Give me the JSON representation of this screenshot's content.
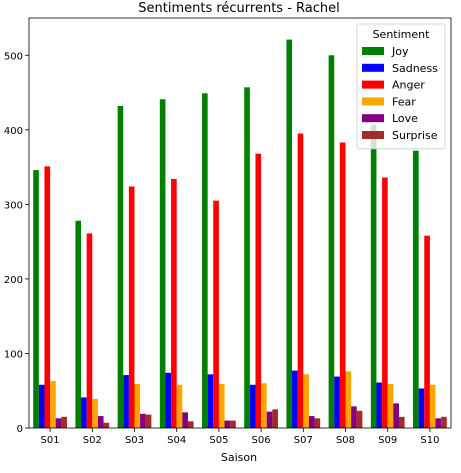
{
  "chart_data": {
    "type": "bar",
    "title": "Sentiments récurrents - Rachel",
    "xlabel": "Saison",
    "ylabel": "",
    "categories": [
      "S01",
      "S02",
      "S03",
      "S04",
      "S05",
      "S06",
      "S07",
      "S08",
      "S09",
      "S10"
    ],
    "ylim": [
      0,
      550
    ],
    "yticks": [
      0,
      100,
      200,
      300,
      400,
      500
    ],
    "grid": false,
    "legend": {
      "title": "Sentiment",
      "placement": "top-right"
    },
    "series": [
      {
        "name": "Joy",
        "color": "#008000",
        "values": [
          346,
          278,
          432,
          441,
          449,
          457,
          521,
          500,
          407,
          372
        ]
      },
      {
        "name": "Sadness",
        "color": "#0000ff",
        "values": [
          58,
          41,
          71,
          74,
          72,
          58,
          77,
          69,
          61,
          53
        ]
      },
      {
        "name": "Anger",
        "color": "#ff0000",
        "values": [
          351,
          261,
          324,
          334,
          305,
          368,
          395,
          383,
          336,
          258
        ]
      },
      {
        "name": "Fear",
        "color": "#ffa500",
        "values": [
          63,
          39,
          59,
          58,
          59,
          60,
          72,
          76,
          59,
          58
        ]
      },
      {
        "name": "Love",
        "color": "#800080",
        "values": [
          13,
          16,
          19,
          21,
          10,
          22,
          16,
          29,
          33,
          13
        ]
      },
      {
        "name": "Surprise",
        "color": "#a52a2a",
        "values": [
          15,
          7,
          18,
          9,
          10,
          25,
          13,
          23,
          15,
          15
        ]
      }
    ]
  }
}
